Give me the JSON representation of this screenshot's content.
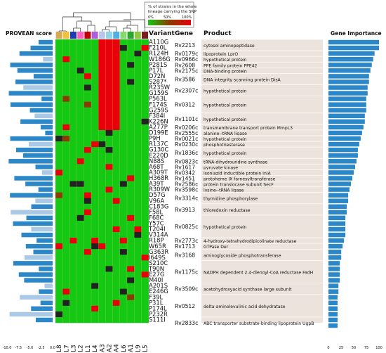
{
  "legend": {
    "title_line1": "% of strains in the whole",
    "title_line2": "lineage carrying the SNP",
    "ticks": [
      "0%",
      "50%",
      "100%"
    ]
  },
  "headers": {
    "provean": "PROVEAN score",
    "variant": "Variant",
    "gene": "Gene",
    "product": "Product",
    "importance": "Gene Importance"
  },
  "colors": {
    "heat_low": "#14c814",
    "heat_high": "#e8000b",
    "heat_dark": "#222222",
    "heat_olive": "#8b3a00",
    "bar_blue": "#2b87c8",
    "bar_light": "#a9c9e6",
    "panel_bg": "#ece3dc"
  },
  "chart_data": [
    {
      "type": "heatmap",
      "title": "",
      "x_labels": [
        "L8",
        "L7",
        "L3",
        "L2",
        "L1",
        "L4",
        "A3",
        "A2",
        "A4",
        "L6",
        "A1",
        "L9",
        "L5"
      ],
      "lineage_colors": [
        "#d9a84e",
        "#f0c23c",
        "#1f3bb3",
        "#ff60c0",
        "#c00000",
        "#b05cd8",
        "#b9c7f0",
        "#8fd4ef",
        "#4fb0e8",
        "#86d96c",
        "#2aa62a",
        "#8ec63f",
        "#7d1c1c"
      ],
      "grid": false,
      "legend_position": "top"
    },
    {
      "type": "bar",
      "title": "PROVEAN score",
      "xlim": [
        -10,
        0
      ],
      "xticks": [
        "-10.0",
        "-7.5",
        "-5.0",
        "-2.5",
        "0.0"
      ],
      "orientation": "horizontal-left"
    },
    {
      "type": "bar",
      "title": "Gene Importance",
      "xlim": [
        0,
        100
      ],
      "xticks": [
        "0",
        "25",
        "50",
        "75",
        "100"
      ],
      "orientation": "horizontal"
    }
  ],
  "variants": [
    "A110G",
    "F210L",
    "R124H",
    "W186G",
    "P281S",
    "P17L",
    "D72N",
    "S287*",
    "R235W",
    "G159S",
    "P563L",
    "F174S",
    "G259S",
    "F384I",
    "K226N",
    "A277P",
    "D199E",
    "P9H",
    "R137C",
    "G130C",
    "E220D",
    "N88S",
    "A68T",
    "A309T",
    "H368R",
    "A39T",
    "R309W",
    "D57G",
    "V96A",
    "C183G",
    "F58L",
    "F68C",
    "Y57C",
    "T204I",
    "V314A",
    "R18P",
    "W65R",
    "G363R",
    "I649S",
    "S210C",
    "T90N",
    "E27G",
    "M40I",
    "A201S",
    "E246G",
    "F39L",
    "P31L",
    "P174L",
    "P232R",
    "S111I"
  ],
  "genes": [
    {
      "gene": "Rv2213",
      "product": "cytosol aminopeptidase"
    },
    {
      "gene": "Rv0179c",
      "product": "lipoprotein LprO"
    },
    {
      "gene": "Rv0966c",
      "product": "hypothetical protein"
    },
    {
      "gene": "Rv2608",
      "product": "PPE family protein PPE42"
    },
    {
      "gene": "Rv2175c",
      "product": "DNA-binding protein"
    },
    {
      "gene": "Rv3586",
      "product": "DNA integrity scanning protein DisA"
    },
    {
      "gene": "Rv2307c",
      "product": "hypothetical protein"
    },
    {
      "gene": "Rv0312",
      "product": "hypothetical protein"
    },
    {
      "gene": "Rv1101c",
      "product": "hypothetical protein"
    },
    {
      "gene": "Rv0206c",
      "product": "transmembrane transport protein MmpL3"
    },
    {
      "gene": "Rv2555c",
      "product": "alanine--tRNA ligase"
    },
    {
      "gene": "Rv0021c",
      "product": "hypothetical protein"
    },
    {
      "gene": "Rv0230c",
      "product": "phosphotriesterase"
    },
    {
      "gene": "Rv1836c",
      "product": "hypothetical protein"
    },
    {
      "gene": "Rv0823c",
      "product": "tRNA-dihydrouridine synthase"
    },
    {
      "gene": "Rv1617",
      "product": "pyruvate kinase"
    },
    {
      "gene": "Rv0342",
      "product": "isoniazid inductible protein IniA"
    },
    {
      "gene": "Rv1451",
      "product": "protoheme IX farnesyltransferase"
    },
    {
      "gene": "Rv2586c",
      "product": "protein translocase subunit SecF"
    },
    {
      "gene": "Rv3598c",
      "product": "lysine--tRNA ligase"
    },
    {
      "gene": "Rv3314c",
      "product": "thymidine phosphorylase"
    },
    {
      "gene": "Rv3913",
      "product": "thioredoxin reductase"
    },
    {
      "gene": "Rv0825c",
      "product": "hypothetical protein"
    },
    {
      "gene": "Rv2773c",
      "product": "4-hydroxy-tetrahydrodipicolinate reductase"
    },
    {
      "gene": "Rv1713",
      "product": "GTPase Der"
    },
    {
      "gene": "Rv3168",
      "product": "aminoglycoside phosphotransferase"
    },
    {
      "gene": "Rv1175c",
      "product": "NADPH dependent 2,4-dienoyl-CoA reductase FadH"
    },
    {
      "gene": "Rv3509c",
      "product": "acetohydroxyacid synthase large subunit"
    },
    {
      "gene": "Rv0512",
      "product": "delta-aminolevulinic acid dehydratase"
    },
    {
      "gene": "Rv2833c",
      "product": "ABC transporter substrate-binding lipoprotein UgpB"
    }
  ]
}
